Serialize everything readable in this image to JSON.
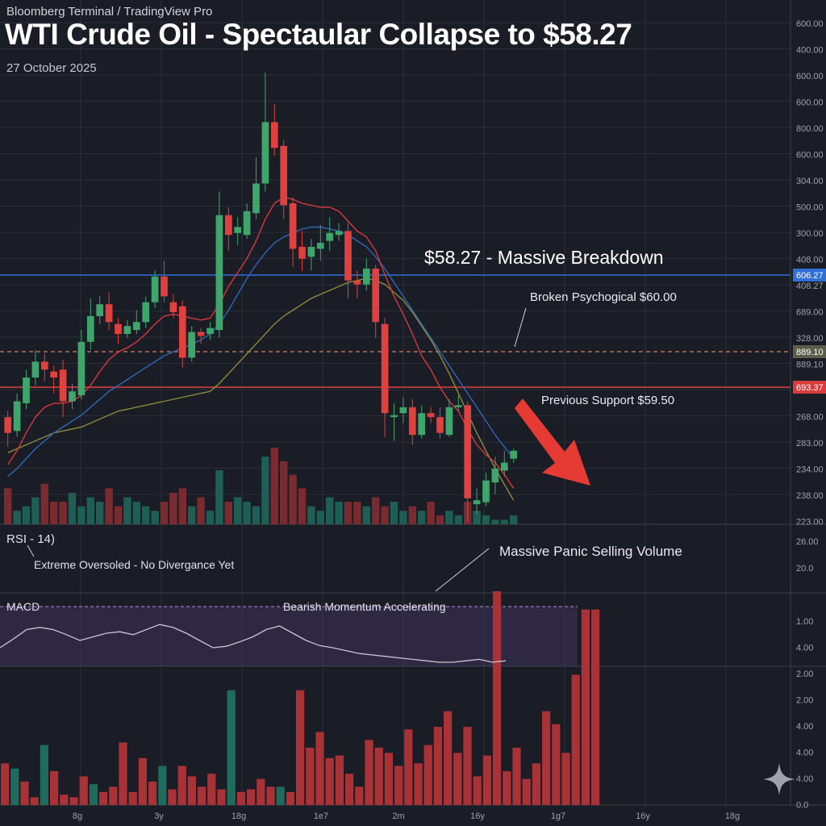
{
  "header": {
    "source": "Bloomberg Terminal / TradingView Pro",
    "title": "WTI Crude Oil - Spectaular Collapse to $58.27",
    "date": "27 October 2025"
  },
  "annotations": {
    "breakdown": "$58.27 - Massive Breakdown",
    "psychological": "Broken Psychogical $60.00",
    "support": "Previous Support $59.50",
    "panic": "Massive Panic Selling Volume",
    "rsi_label": "RSI - 14)",
    "rsi_note": "Extreme Oversoled - No Divergance Yet",
    "macd_label": "MACD",
    "macd_note": "Bearish Momentum Accelerating"
  },
  "colors": {
    "background": "#1a1d26",
    "grid": "#2a2e39",
    "up": "#3fa66b",
    "down": "#e0413f",
    "volume_up": "#1f5e55",
    "volume_down": "#7a2b30",
    "ma_fast": "#d9383c",
    "ma_mid": "#2f67b8",
    "ma_slow": "#8c8a3a",
    "level_blue": "#2f6fd6",
    "level_red": "#e0413f",
    "level_dashed": "#b6705a",
    "arrow": "#e63a34"
  },
  "icons": {
    "sparkle": "sparkle-icon"
  },
  "chart_data": [
    {
      "type": "candlestick",
      "title": "WTI Crude Oil - Spectaular Collapse to $58.27",
      "price_axis_labels": [
        "600.00",
        "400.00",
        "600.00",
        "600.00",
        "800.00",
        "600.00",
        "304.00",
        "500.00",
        "300.00",
        "408.00",
        "408.27",
        "689.00",
        "328.00",
        "889.10",
        "693.37",
        "268.00",
        "283.00",
        "234.00",
        "238.00",
        "223.00"
      ],
      "time_axis_labels": [
        "8g",
        "3y",
        "18g",
        "1e7",
        "2m",
        "16y",
        "1g7",
        "16y",
        "18g"
      ],
      "levels": [
        {
          "name": "blue-level",
          "tag": "606.27"
        },
        {
          "name": "dashed-level",
          "tag": "889.10"
        },
        {
          "name": "red-level",
          "tag": "693.37"
        }
      ],
      "candles": [
        [
          66.6,
          65.8,
          66.9,
          65.1
        ],
        [
          65.9,
          67.4,
          67.8,
          65.6
        ],
        [
          67.3,
          68.6,
          69.0,
          67.0
        ],
        [
          68.6,
          69.4,
          70.0,
          68.2
        ],
        [
          69.4,
          69.0,
          69.8,
          68.4
        ],
        [
          68.9,
          68.6,
          69.2,
          67.8
        ],
        [
          69.0,
          67.4,
          69.5,
          66.6
        ],
        [
          67.4,
          67.9,
          68.3,
          67.0
        ],
        [
          67.7,
          70.4,
          71.0,
          67.5
        ],
        [
          70.4,
          71.7,
          72.6,
          70.0
        ],
        [
          71.7,
          72.3,
          72.7,
          71.3
        ],
        [
          72.3,
          71.4,
          72.9,
          71.0
        ],
        [
          71.3,
          70.8,
          71.6,
          70.3
        ],
        [
          70.8,
          71.2,
          71.5,
          70.6
        ],
        [
          71.0,
          71.4,
          72.0,
          70.8
        ],
        [
          71.4,
          72.4,
          72.7,
          71.1
        ],
        [
          72.4,
          73.7,
          74.0,
          72.1
        ],
        [
          73.7,
          72.7,
          74.5,
          72.4
        ],
        [
          72.4,
          71.9,
          72.8,
          71.6
        ],
        [
          72.2,
          69.6,
          72.5,
          69.1
        ],
        [
          69.6,
          70.9,
          71.2,
          69.4
        ],
        [
          70.9,
          70.7,
          71.1,
          70.3
        ],
        [
          70.8,
          71.1,
          71.4,
          70.5
        ],
        [
          71.0,
          76.8,
          78.0,
          70.6
        ],
        [
          76.8,
          75.8,
          77.2,
          75.0
        ],
        [
          75.9,
          76.2,
          76.7,
          75.3
        ],
        [
          75.8,
          77.0,
          77.4,
          75.6
        ],
        [
          76.9,
          78.4,
          79.7,
          76.6
        ],
        [
          78.4,
          81.5,
          84.0,
          78.0
        ],
        [
          81.5,
          80.2,
          82.4,
          79.8
        ],
        [
          80.3,
          77.3,
          80.6,
          76.6
        ],
        [
          77.4,
          75.1,
          77.7,
          74.2
        ],
        [
          75.2,
          74.6,
          76.0,
          74.0
        ],
        [
          74.7,
          75.2,
          75.6,
          74.0
        ],
        [
          75.1,
          75.4,
          76.3,
          74.5
        ],
        [
          75.5,
          75.9,
          76.7,
          75.0
        ],
        [
          75.8,
          76.0,
          76.4,
          75.5
        ],
        [
          76.0,
          73.5,
          76.4,
          72.6
        ],
        [
          73.5,
          73.3,
          74.0,
          72.6
        ],
        [
          73.3,
          74.1,
          74.6,
          73.0
        ],
        [
          74.1,
          71.4,
          74.3,
          70.6
        ],
        [
          71.3,
          66.8,
          71.6,
          65.6
        ],
        [
          66.6,
          66.7,
          67.3,
          65.4
        ],
        [
          66.8,
          67.1,
          67.6,
          66.3
        ],
        [
          67.1,
          65.7,
          67.5,
          65.2
        ],
        [
          65.7,
          66.8,
          67.2,
          65.5
        ],
        [
          66.8,
          66.6,
          67.1,
          66.3
        ],
        [
          66.6,
          65.8,
          67.1,
          65.5
        ],
        [
          65.7,
          67.1,
          67.5,
          65.6
        ],
        [
          67.1,
          67.2,
          67.7,
          66.9
        ],
        [
          67.2,
          62.5,
          67.4,
          61.3
        ],
        [
          62.2,
          62.4,
          63.0,
          61.7
        ],
        [
          62.3,
          63.4,
          63.8,
          62.1
        ],
        [
          63.3,
          64.0,
          64.6,
          62.7
        ],
        [
          63.9,
          64.3,
          64.9,
          63.6
        ],
        [
          64.5,
          64.9,
          65.0,
          64.3
        ]
      ],
      "ma_fast": [
        64.2,
        64.9,
        65.8,
        66.6,
        67.1,
        67.3,
        67.3,
        67.4,
        67.7,
        68.2,
        68.9,
        69.5,
        69.9,
        70.1,
        70.4,
        70.8,
        71.3,
        71.7,
        71.8,
        71.7,
        71.6,
        71.5,
        71.6,
        72.3,
        73.2,
        73.9,
        74.6,
        75.5,
        76.6,
        77.4,
        77.7,
        77.6,
        77.4,
        77.3,
        77.2,
        77.2,
        77.0,
        76.5,
        76.0,
        75.7,
        75.0,
        73.8,
        72.7,
        71.8,
        70.8,
        69.7,
        69.0,
        68.1,
        67.4,
        66.9,
        66.0,
        65.2,
        64.7,
        64.3,
        63.7,
        63.0
      ],
      "ma_mid": [
        63.6,
        64.0,
        64.5,
        65.0,
        65.4,
        65.8,
        66.1,
        66.4,
        66.7,
        67.1,
        67.5,
        67.9,
        68.2,
        68.5,
        68.8,
        69.1,
        69.4,
        69.7,
        69.9,
        70.1,
        70.3,
        70.5,
        70.8,
        71.3,
        72.0,
        72.8,
        73.6,
        74.3,
        74.9,
        75.4,
        75.7,
        75.9,
        76.1,
        76.2,
        76.2,
        76.1,
        76.0,
        75.8,
        75.5,
        75.2,
        74.7,
        74.1,
        73.4,
        72.7,
        72.0,
        71.3,
        70.6,
        69.9,
        69.2,
        68.5,
        67.8,
        67.1,
        66.4,
        65.7,
        65.1,
        64.5
      ],
      "ma_slow": [
        64.8,
        65.0,
        65.2,
        65.4,
        65.6,
        65.8,
        65.9,
        66.0,
        66.1,
        66.3,
        66.5,
        66.7,
        66.9,
        67.0,
        67.1,
        67.2,
        67.3,
        67.4,
        67.5,
        67.6,
        67.7,
        67.8,
        67.9,
        68.3,
        68.8,
        69.3,
        69.8,
        70.3,
        70.8,
        71.3,
        71.7,
        72.0,
        72.3,
        72.6,
        72.8,
        73.0,
        73.2,
        73.4,
        73.5,
        73.6,
        73.5,
        73.3,
        72.9,
        72.5,
        71.9,
        71.2,
        70.5,
        69.7,
        68.8,
        67.8,
        66.8,
        65.8,
        64.9,
        64.0,
        63.2,
        62.4
      ],
      "volume": [
        8,
        3,
        4,
        6,
        9,
        5,
        5,
        7,
        4,
        6,
        5,
        8,
        4,
        6,
        5,
        4,
        3,
        5,
        7,
        8,
        4,
        6,
        3,
        12,
        5,
        6,
        5,
        4,
        15,
        17,
        14,
        11,
        8,
        4,
        3,
        6,
        5,
        5,
        5,
        4,
        6,
        4,
        5,
        3,
        4,
        3,
        5,
        2,
        3,
        2,
        5,
        3,
        2,
        1,
        1,
        2
      ]
    },
    {
      "type": "bar",
      "title": "MACD",
      "y_axis_labels": [
        "1.00",
        "4.00",
        "2.00",
        "2.00",
        "4.00",
        "4.00",
        "4.00",
        "0.0"
      ],
      "rsi_axis_labels": [
        "26.00",
        "20.0"
      ],
      "histogram": [
        32,
        28,
        18,
        6,
        46,
        26,
        8,
        6,
        22,
        16,
        10,
        14,
        48,
        10,
        36,
        18,
        30,
        12,
        30,
        22,
        14,
        24,
        12,
        88,
        10,
        12,
        20,
        14,
        14,
        10,
        88,
        44,
        56,
        36,
        38,
        24,
        14,
        50,
        44,
        40,
        30,
        58,
        32,
        46,
        60,
        72,
        40,
        60,
        22,
        38,
        164,
        26,
        44,
        20,
        32,
        72,
        62,
        40,
        100,
        150,
        150
      ],
      "histogram_colors": "down-dominant",
      "macd_line": [
        0.3,
        0.42,
        0.55,
        0.58,
        0.55,
        0.48,
        0.4,
        0.45,
        0.5,
        0.52,
        0.48,
        0.55,
        0.62,
        0.58,
        0.5,
        0.4,
        0.3,
        0.32,
        0.38,
        0.45,
        0.55,
        0.6,
        0.5,
        0.4,
        0.33,
        0.3,
        0.26,
        0.22,
        0.2,
        0.18,
        0.16,
        0.14,
        0.12,
        0.1,
        0.1,
        0.12,
        0.14,
        0.1,
        0.12
      ]
    }
  ]
}
